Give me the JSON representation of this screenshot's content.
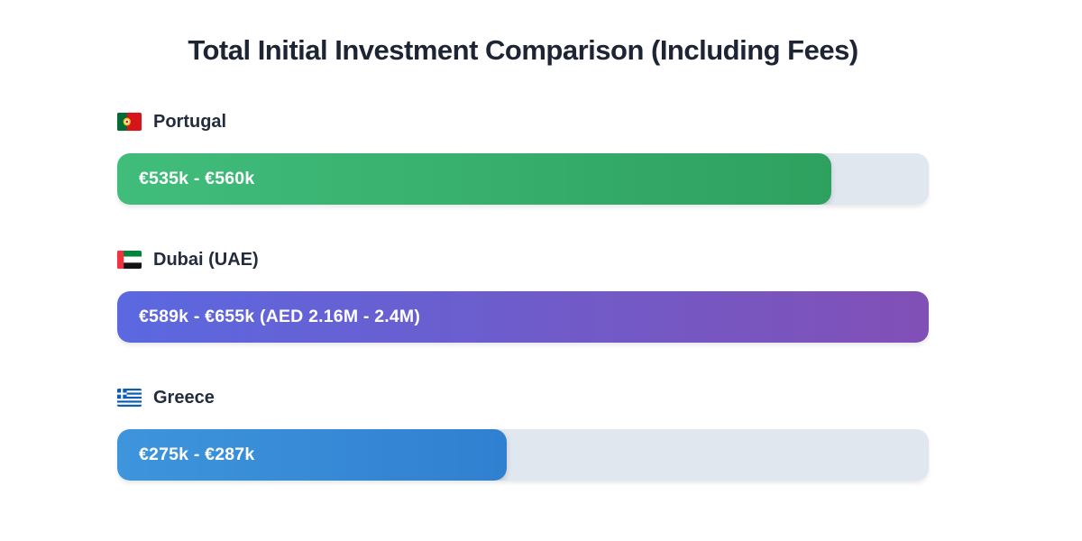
{
  "title": "Total Initial Investment Comparison (Including Fees)",
  "chart_data": {
    "type": "bar",
    "orientation": "horizontal",
    "title": "Total Initial Investment Comparison (Including Fees)",
    "categories": [
      "Portugal",
      "Dubai (UAE)",
      "Greece"
    ],
    "track_color": "#e1e7ee",
    "bars": [
      {
        "label": "Portugal",
        "flag_icon": "portugal-flag-icon",
        "value_label": "€535k - €560k",
        "min_eur_k": 535,
        "max_eur_k": 560,
        "fill_percent": 88,
        "color_start": "#41bd7b",
        "color_end": "#2ea15f"
      },
      {
        "label": "Dubai (UAE)",
        "flag_icon": "uae-flag-icon",
        "value_label": "€589k - €655k (AED 2.16M - 2.4M)",
        "min_eur_k": 589,
        "max_eur_k": 655,
        "aed_range": "AED 2.16M - 2.4M",
        "fill_percent": 100,
        "color_start": "#5b68e0",
        "color_end": "#8150b6"
      },
      {
        "label": "Greece",
        "flag_icon": "greece-flag-icon",
        "value_label": "€275k - €287k",
        "min_eur_k": 275,
        "max_eur_k": 287,
        "fill_percent": 48,
        "color_start": "#3e95dc",
        "color_end": "#3080d1"
      }
    ]
  }
}
